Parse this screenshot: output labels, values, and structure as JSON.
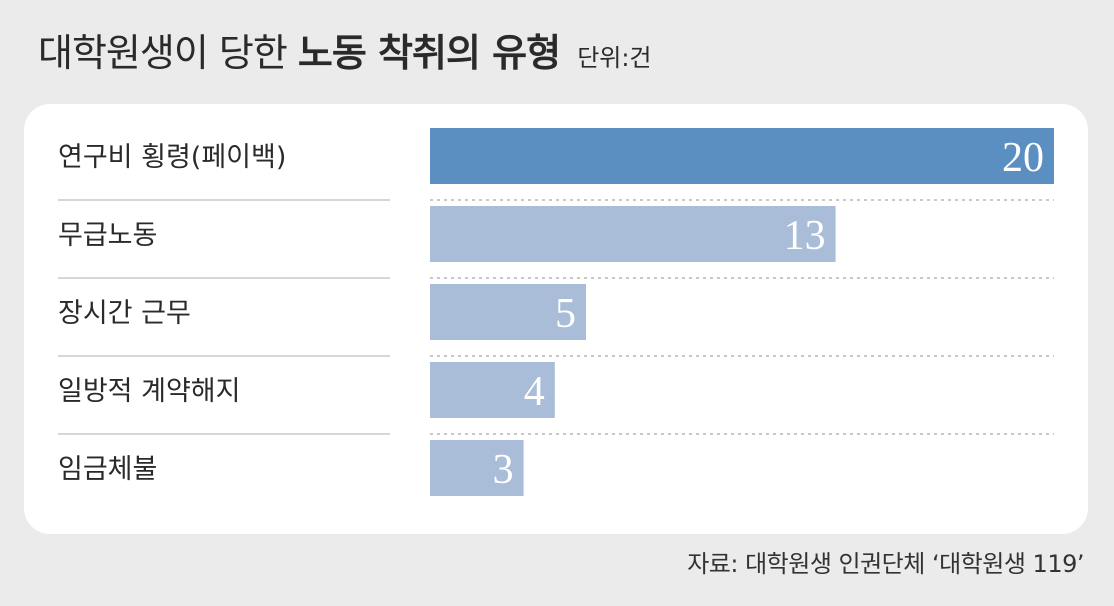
{
  "title": {
    "light": "대학원생이 당한",
    "bold": "노동 착취의 유형",
    "unit": "단위:건"
  },
  "source": "자료: 대학원생 인권단체 ‘대학원생 119’",
  "colors": {
    "highlight_bar": "#5b8fc2",
    "bar": "#a9bdd9",
    "divider": "#c8c8c8",
    "grid_dots": "#b5b5b5"
  },
  "chart_data": {
    "type": "bar",
    "orientation": "horizontal",
    "title": "대학원생이 당한 노동 착취의 유형",
    "unit": "단위:건",
    "categories": [
      "연구비 횡령(페이백)",
      "무급노동",
      "장시간 근무",
      "일방적 계약해지",
      "임금체불"
    ],
    "values": [
      20,
      13,
      5,
      4,
      3
    ],
    "value_labels": [
      "20",
      "13",
      "5",
      "4",
      "3"
    ],
    "xlim": [
      0,
      20
    ],
    "highlight_index": 0,
    "grid": false,
    "legend": "none"
  }
}
